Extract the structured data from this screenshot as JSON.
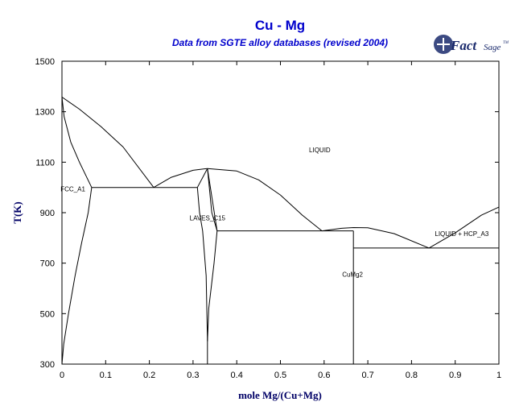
{
  "header": {
    "title": "Cu - Mg",
    "subtitle": "Data from SGTE alloy databases (revised 2004)"
  },
  "logo": {
    "part1": "Fact",
    "part2": "Sage",
    "mark": "TM",
    "icon": "factsage-logo-icon"
  },
  "chart_data": {
    "type": "line",
    "title": "Cu - Mg",
    "subtitle": "Data from SGTE alloy databases (revised 2004)",
    "xlabel": "mole Mg/(Cu+Mg)",
    "ylabel": "T(K)",
    "xlim": [
      0,
      1
    ],
    "ylim": [
      300,
      1500
    ],
    "xticks": [
      0,
      0.1,
      0.2,
      0.3,
      0.4,
      0.5,
      0.6,
      0.7,
      0.8,
      0.9,
      1
    ],
    "xtick_labels": [
      "0",
      "0.1",
      "0.2",
      "0.3",
      "0.4",
      "0.5",
      "0.6",
      "0.7",
      "0.8",
      "0.9",
      "1"
    ],
    "yticks": [
      300,
      500,
      700,
      900,
      1100,
      1300,
      1500
    ],
    "ytick_labels": [
      "300",
      "500",
      "700",
      "900",
      "1100",
      "1300",
      "1500"
    ],
    "grid": false,
    "line_color": "#000000",
    "series": [
      {
        "values": [
          [
            0,
            1358
          ],
          [
            0.04,
            1310
          ],
          [
            0.09,
            1240
          ],
          [
            0.14,
            1160
          ],
          [
            0.21,
            1000
          ]
        ]
      },
      {
        "values": [
          [
            0,
            1358
          ],
          [
            0.005,
            1280
          ],
          [
            0.02,
            1180
          ],
          [
            0.04,
            1100
          ],
          [
            0.068,
            1000
          ]
        ]
      },
      {
        "values": [
          [
            0.068,
            1000
          ],
          [
            0.06,
            900
          ],
          [
            0.045,
            780
          ],
          [
            0.03,
            650
          ],
          [
            0.015,
            500
          ],
          [
            0.004,
            380
          ],
          [
            0,
            300
          ]
        ]
      },
      {
        "values": [
          [
            0.068,
            1000
          ],
          [
            0.31,
            1000
          ]
        ]
      },
      {
        "values": [
          [
            0.21,
            1000
          ],
          [
            0.25,
            1040
          ],
          [
            0.3,
            1068
          ],
          [
            0.333,
            1075
          ]
        ]
      },
      {
        "values": [
          [
            0.333,
            1075
          ],
          [
            0.4,
            1065
          ],
          [
            0.45,
            1030
          ],
          [
            0.5,
            970
          ],
          [
            0.55,
            890
          ],
          [
            0.595,
            828
          ]
        ]
      },
      {
        "values": [
          [
            0.31,
            1000
          ],
          [
            0.333,
            1075
          ]
        ]
      },
      {
        "values": [
          [
            0.333,
            1075
          ],
          [
            0.355,
            828
          ]
        ]
      },
      {
        "values": [
          [
            0.31,
            1000
          ],
          [
            0.315,
            900
          ],
          [
            0.322,
            828
          ],
          [
            0.33,
            650
          ],
          [
            0.333,
            390
          ]
        ]
      },
      {
        "values": [
          [
            0.333,
            1075
          ],
          [
            0.343,
            900
          ],
          [
            0.355,
            828
          ],
          [
            0.348,
            700
          ],
          [
            0.336,
            520
          ],
          [
            0.333,
            390
          ]
        ]
      },
      {
        "values": [
          [
            0.333,
            390
          ],
          [
            0.333,
            300
          ]
        ]
      },
      {
        "values": [
          [
            0.355,
            828
          ],
          [
            0.667,
            828
          ]
        ]
      },
      {
        "values": [
          [
            0.595,
            828
          ],
          [
            0.64,
            838
          ],
          [
            0.667,
            841
          ],
          [
            0.7,
            840
          ],
          [
            0.76,
            817
          ],
          [
            0.84,
            760
          ]
        ]
      },
      {
        "values": [
          [
            0.667,
            828
          ],
          [
            0.667,
            300
          ]
        ]
      },
      {
        "values": [
          [
            0.667,
            760
          ],
          [
            1,
            760
          ]
        ]
      },
      {
        "values": [
          [
            0.84,
            760
          ],
          [
            0.9,
            820
          ],
          [
            0.96,
            890
          ],
          [
            1,
            922
          ]
        ]
      }
    ],
    "annotations": [
      {
        "text": "LIQUID",
        "x": 0.59,
        "y": 1140
      },
      {
        "text": "FCC_A1",
        "x": 0.025,
        "y": 985
      },
      {
        "text": "LAVES_C15",
        "x": 0.333,
        "y": 870
      },
      {
        "text": "LIQUID + HCP_A3",
        "x": 0.915,
        "y": 808
      },
      {
        "text": "CuMg2",
        "x": 0.665,
        "y": 646
      }
    ]
  }
}
